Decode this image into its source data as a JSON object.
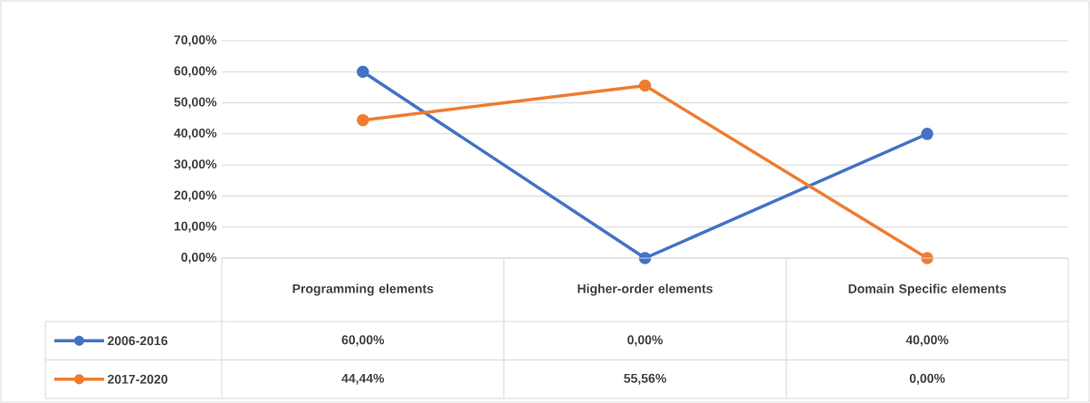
{
  "chart_data": {
    "type": "line",
    "categories": [
      "Programming elements",
      "Higher-order elements",
      "Domain Specific elements"
    ],
    "series": [
      {
        "name": "2006-2016",
        "color": "#4472c4",
        "values": [
          60,
          0,
          40
        ],
        "value_labels": [
          "60,00%",
          "0,00%",
          "40,00%"
        ]
      },
      {
        "name": "2017-2020",
        "color": "#ed7d31",
        "values": [
          44.44,
          55.56,
          0
        ],
        "value_labels": [
          "44,44%",
          "55,56%",
          "0,00%"
        ]
      }
    ],
    "ylim": [
      0,
      70
    ],
    "yticks": [
      {
        "value": 0,
        "label": "0,00%"
      },
      {
        "value": 10,
        "label": "10,00%"
      },
      {
        "value": 20,
        "label": "20,00%"
      },
      {
        "value": 30,
        "label": "30,00%"
      },
      {
        "value": 40,
        "label": "40,00%"
      },
      {
        "value": 50,
        "label": "50,00%"
      },
      {
        "value": 60,
        "label": "60,00%"
      },
      {
        "value": 70,
        "label": "70,00%"
      }
    ],
    "grid": "y",
    "legend": "bottom",
    "marker": "circle",
    "line_style": "solid"
  }
}
